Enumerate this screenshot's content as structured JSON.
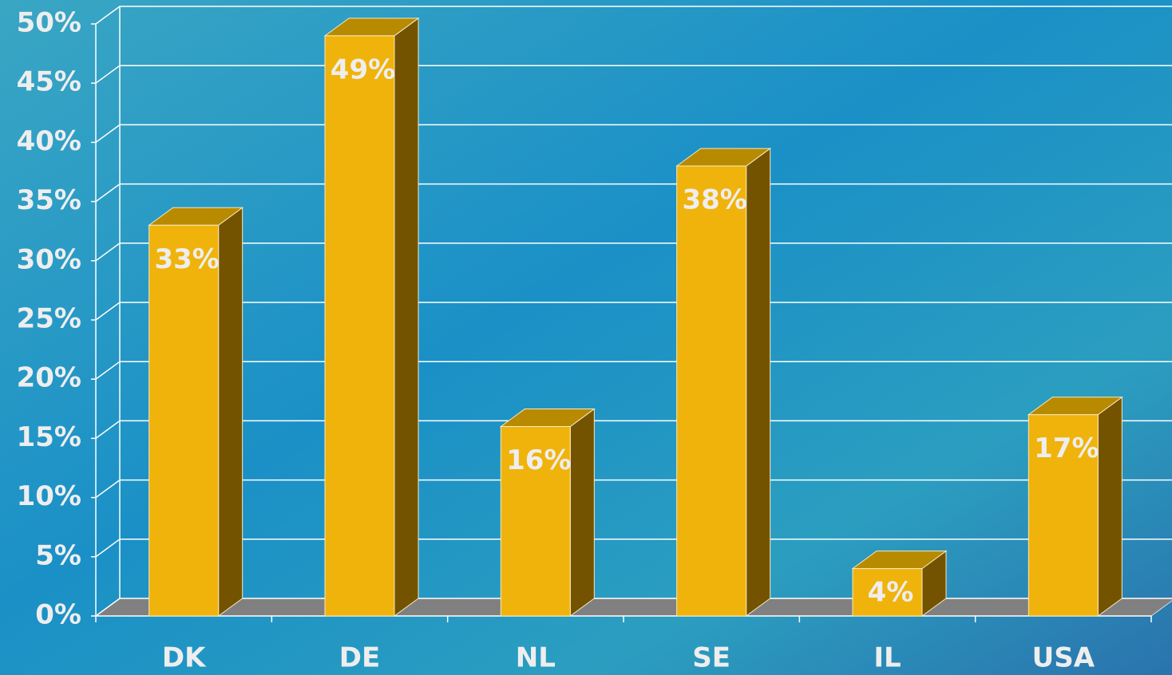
{
  "chart_data": {
    "type": "bar3d",
    "categories": [
      "DK",
      "DE",
      "NL",
      "SE",
      "IL",
      "USA"
    ],
    "values": [
      33,
      49,
      16,
      38,
      4,
      17
    ],
    "value_labels": [
      "33%",
      "49%",
      "16%",
      "38%",
      "4%",
      "17%"
    ],
    "color": "#f0b30c",
    "ylim": [
      0,
      50
    ],
    "yticks": [
      {
        "value": 0,
        "label": "0%"
      },
      {
        "value": 5,
        "label": "5%"
      },
      {
        "value": 10,
        "label": "10%"
      },
      {
        "value": 15,
        "label": "15%"
      },
      {
        "value": 20,
        "label": "20%"
      },
      {
        "value": 25,
        "label": "25%"
      },
      {
        "value": 30,
        "label": "30%"
      },
      {
        "value": 35,
        "label": "35%"
      },
      {
        "value": 40,
        "label": "40%"
      },
      {
        "value": 45,
        "label": "45%"
      },
      {
        "value": 50,
        "label": "50%"
      }
    ],
    "grid": true
  }
}
